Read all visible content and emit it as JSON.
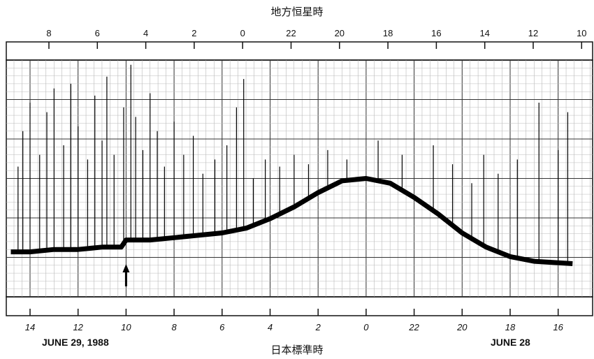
{
  "chart_data": {
    "type": "line",
    "title": "",
    "top_axis": {
      "label": "地方恒星時",
      "ticks": [
        8,
        6,
        4,
        2,
        0,
        22,
        20,
        18,
        16,
        14,
        12,
        10
      ],
      "direction": "decreasing"
    },
    "bottom_axis": {
      "label": "日本標準時",
      "ticks": [
        14,
        12,
        10,
        8,
        6,
        4,
        2,
        0,
        22,
        20,
        18,
        16
      ],
      "direction": "decreasing"
    },
    "date_labels": [
      "JUNE 29, 1988",
      "JUNE 28"
    ],
    "marker": {
      "type": "arrow",
      "at_bottom_hour": 10
    },
    "grid": true,
    "series": [
      {
        "baseline": {
          "x": [
            14.8,
            14,
            13,
            12,
            11,
            10.2,
            10,
            9,
            8,
            7,
            6,
            5,
            4,
            3,
            2,
            1,
            0,
            -1,
            -2,
            -3,
            -4,
            -5,
            -6,
            -7,
            -8.6
          ],
          "y": [
            0.19,
            0.19,
            0.2,
            0.2,
            0.21,
            0.21,
            0.24,
            0.24,
            0.25,
            0.26,
            0.27,
            0.29,
            0.33,
            0.38,
            0.44,
            0.49,
            0.5,
            0.48,
            0.42,
            0.35,
            0.27,
            0.21,
            0.17,
            0.15,
            0.14
          ]
        },
        "spikes": {
          "x": [
            14.5,
            14.3,
            14.0,
            13.6,
            13.3,
            13.0,
            12.6,
            12.3,
            12.0,
            11.6,
            11.3,
            11.0,
            10.8,
            10.5,
            10.1,
            9.8,
            9.6,
            9.3,
            9.0,
            8.7,
            8.4,
            8.0,
            7.6,
            7.2,
            6.8,
            6.3,
            5.8,
            5.4,
            5.1,
            4.7,
            4.2,
            3.6,
            3.0,
            2.4,
            1.6,
            0.8,
            -0.5,
            -1.5,
            -2.8,
            -3.6,
            -4.4,
            -4.9,
            -5.5,
            -6.3,
            -7.2,
            -8.0,
            -8.4
          ],
          "y": [
            0.55,
            0.7,
            0.82,
            0.6,
            0.78,
            0.88,
            0.64,
            0.9,
            0.72,
            0.58,
            0.85,
            0.66,
            0.93,
            0.6,
            0.8,
            0.98,
            0.76,
            0.62,
            0.86,
            0.7,
            0.55,
            0.74,
            0.6,
            0.68,
            0.52,
            0.58,
            0.64,
            0.8,
            0.92,
            0.5,
            0.58,
            0.55,
            0.6,
            0.56,
            0.62,
            0.58,
            0.66,
            0.6,
            0.64,
            0.56,
            0.48,
            0.6,
            0.52,
            0.58,
            0.82,
            0.62,
            0.78
          ]
        }
      }
    ]
  }
}
